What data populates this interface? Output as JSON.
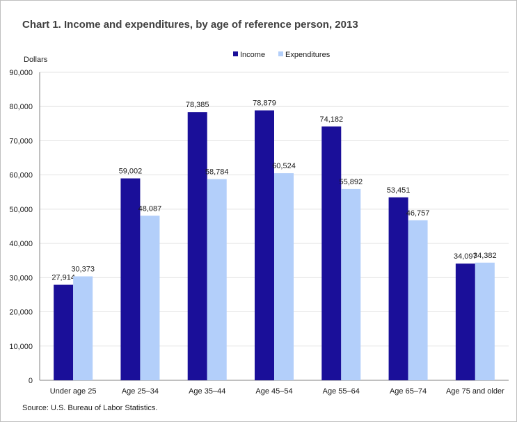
{
  "chart_data": {
    "type": "bar",
    "title": "Chart 1. Income and expenditures, by age of reference person, 2013",
    "ylabel": "Dollars",
    "xlabel": "",
    "categories": [
      "Under age 25",
      "Age 25–34",
      "Age 35–44",
      "Age 45–54",
      "Age 55–64",
      "Age 65–74",
      "Age 75 and older"
    ],
    "series": [
      {
        "name": "Income",
        "color": "#1a0f99",
        "values": [
          27914,
          59002,
          78385,
          78879,
          74182,
          53451,
          34097
        ]
      },
      {
        "name": "Expenditures",
        "color": "#b3cffa",
        "values": [
          30373,
          48087,
          58784,
          60524,
          55892,
          46757,
          34382
        ]
      }
    ],
    "ylim": [
      0,
      90000
    ],
    "yticks": [
      0,
      10000,
      20000,
      30000,
      40000,
      50000,
      60000,
      70000,
      80000,
      90000
    ],
    "grid": true,
    "legend_position": "top-center",
    "source": "Source: U.S. Bureau of Labor Statistics."
  }
}
